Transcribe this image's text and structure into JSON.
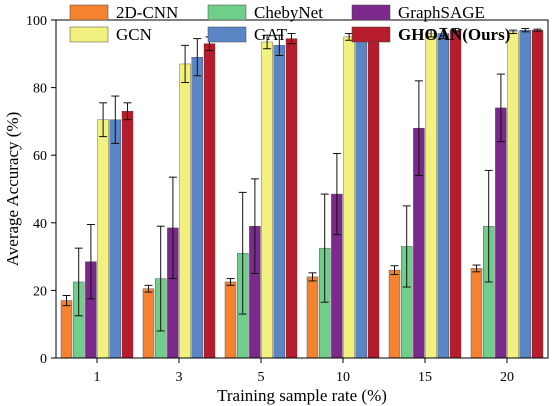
{
  "chart_data": {
    "type": "bar",
    "xlabel": "Training sample rate (%)",
    "ylabel": "Average Accuracy (%)",
    "ylim": [
      0,
      100
    ],
    "yticks": [
      0,
      20,
      40,
      60,
      80,
      100
    ],
    "categories": [
      "1",
      "3",
      "5",
      "10",
      "15",
      "20"
    ],
    "grid": false,
    "legend_position": "top",
    "series": [
      {
        "name": "2D-CNN",
        "color": "#f4822f",
        "values": [
          17,
          20.5,
          22.5,
          24,
          26,
          26.5
        ],
        "errors": [
          1.5,
          1,
          1,
          1.2,
          1.3,
          1
        ]
      },
      {
        "name": "ChebyNet",
        "color": "#6fcf8a",
        "values": [
          22.5,
          23.5,
          31,
          32.5,
          33,
          39
        ],
        "errors": [
          10,
          15.5,
          18,
          16,
          12,
          16.5
        ]
      },
      {
        "name": "GraphSAGE",
        "color": "#7b2a8b",
        "values": [
          28.5,
          38.5,
          39,
          48.5,
          68,
          74
        ],
        "errors": [
          11,
          15,
          14,
          12,
          14,
          10
        ]
      },
      {
        "name": "GCN",
        "color": "#f2f07e",
        "values": [
          70.5,
          87,
          93.5,
          95,
          96,
          96.5
        ],
        "errors": [
          5,
          5.5,
          2,
          1,
          1,
          0.5
        ]
      },
      {
        "name": "GAT",
        "color": "#5b86c5",
        "values": [
          70.5,
          89,
          92.5,
          95.5,
          96,
          97
        ],
        "errors": [
          7,
          5.5,
          3,
          1.5,
          1.5,
          0.5
        ]
      },
      {
        "name": "GHOAN(Ours)",
        "color": "#b71c2c",
        "bold": true,
        "values": [
          73,
          93,
          94.5,
          96,
          97,
          97
        ],
        "errors": [
          2.5,
          2,
          1.5,
          0.5,
          0.5,
          0.3
        ]
      }
    ]
  }
}
